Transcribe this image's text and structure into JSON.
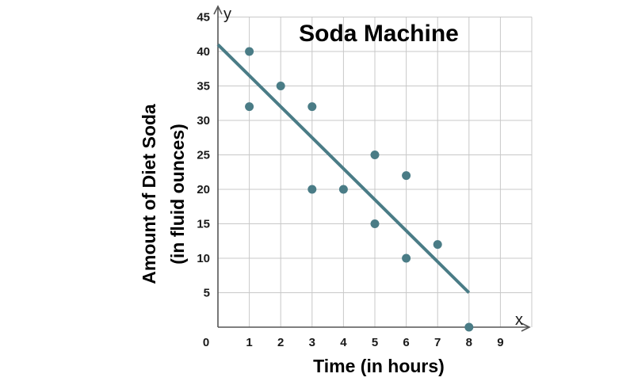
{
  "chart_data": {
    "type": "scatter",
    "title": "Soda Machine",
    "xlabel": "Time (in hours)",
    "ylabel_line1": "Amount of Diet Soda",
    "ylabel_line2": "(in fluid ounces)",
    "x_axis_letter": "x",
    "y_axis_letter": "y",
    "origin_label": "0",
    "xlim": [
      0,
      10
    ],
    "ylim": [
      0,
      45
    ],
    "x_ticks": [
      1,
      2,
      3,
      4,
      5,
      6,
      7,
      8,
      9
    ],
    "y_ticks": [
      5,
      10,
      15,
      20,
      25,
      30,
      35,
      40,
      45
    ],
    "grid": true,
    "points": [
      {
        "x": 1,
        "y": 40
      },
      {
        "x": 1,
        "y": 32
      },
      {
        "x": 2,
        "y": 35
      },
      {
        "x": 3,
        "y": 32
      },
      {
        "x": 3,
        "y": 20
      },
      {
        "x": 4,
        "y": 20
      },
      {
        "x": 5,
        "y": 25
      },
      {
        "x": 5,
        "y": 15
      },
      {
        "x": 6,
        "y": 22
      },
      {
        "x": 6,
        "y": 10
      },
      {
        "x": 7,
        "y": 12
      },
      {
        "x": 8,
        "y": 0
      }
    ],
    "trend_line": {
      "x_start": 0,
      "y_start": 41,
      "x_end": 8,
      "y_end": 5
    },
    "colors": {
      "marker": "#4a7c86",
      "grid": "#c8c8c8",
      "axis": "#555555"
    }
  }
}
